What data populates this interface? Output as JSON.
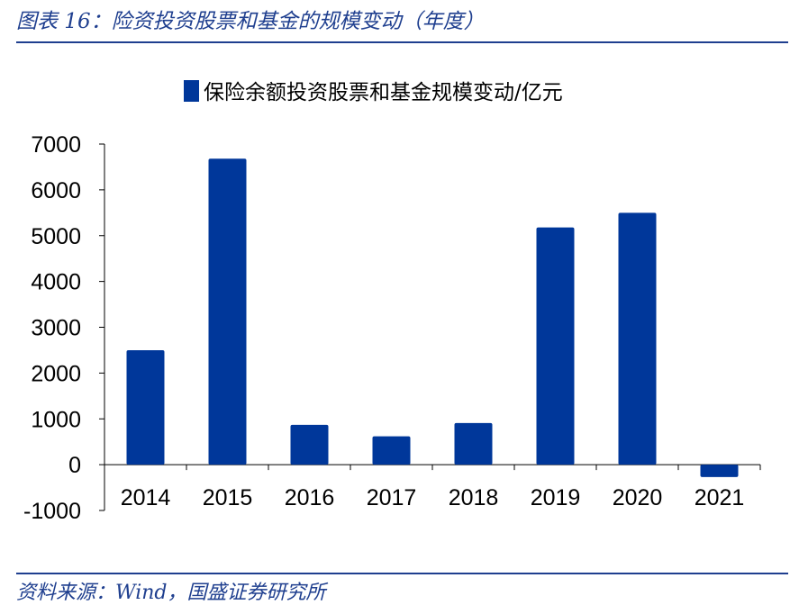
{
  "header": {
    "figure_title": "图表 16：险资投资股票和基金的规模变动（年度）"
  },
  "footer": {
    "source": "资料来源：Wind，国盛证券研究所"
  },
  "colors": {
    "bar": "#00379a",
    "accent": "#1f3f8f",
    "axis": "#000000"
  },
  "chart_data": {
    "type": "bar",
    "title": "",
    "xlabel": "",
    "ylabel": "",
    "categories": [
      "2014",
      "2015",
      "2016",
      "2017",
      "2018",
      "2019",
      "2020",
      "2021"
    ],
    "series": [
      {
        "name": "保险余额投资股票和基金规模变动/亿元",
        "values": [
          2500,
          6680,
          870,
          620,
          910,
          5180,
          5500,
          -270
        ]
      }
    ],
    "ylim": [
      -1000,
      7000
    ],
    "yticks": [
      7000,
      6000,
      5000,
      4000,
      3000,
      2000,
      1000,
      0,
      -1000
    ],
    "legend_position": "top-center",
    "grid": false
  }
}
